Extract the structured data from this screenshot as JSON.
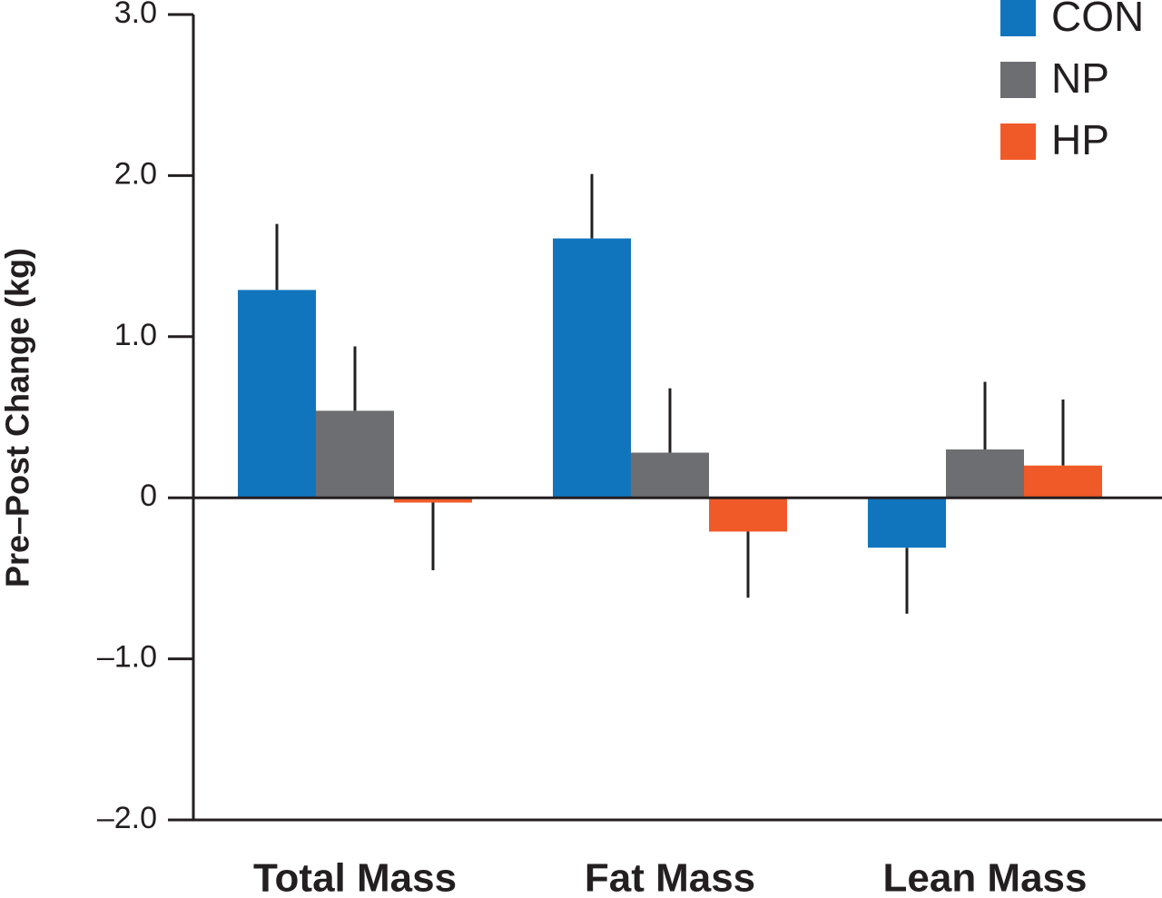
{
  "chart_data": {
    "type": "bar",
    "y_label": "Pre–Post Change (kg)",
    "categories": [
      "Total Mass",
      "Fat Mass",
      "Lean Mass"
    ],
    "series": [
      {
        "name": "CON",
        "color": "#1175bd",
        "values": [
          1.29,
          1.61,
          -0.31
        ],
        "errors": [
          0.41,
          0.4,
          0.41
        ]
      },
      {
        "name": "NP",
        "color": "#6d6e71",
        "values": [
          0.54,
          0.28,
          0.3
        ],
        "errors": [
          0.4,
          0.4,
          0.42
        ]
      },
      {
        "name": "HP",
        "color": "#f05a28",
        "values": [
          -0.03,
          -0.21,
          0.2
        ],
        "errors": [
          0.42,
          0.41,
          0.41
        ]
      }
    ],
    "ylim": [
      -2,
      3
    ],
    "yticks": [
      {
        "value": -2,
        "label": "–2.0"
      },
      {
        "value": -1,
        "label": "–1.0"
      },
      0,
      {
        "value": 1,
        "label": "1.0"
      },
      {
        "value": 2,
        "label": "2.0"
      },
      {
        "value": 3,
        "label": "3.0"
      }
    ],
    "legend": "top-right"
  }
}
